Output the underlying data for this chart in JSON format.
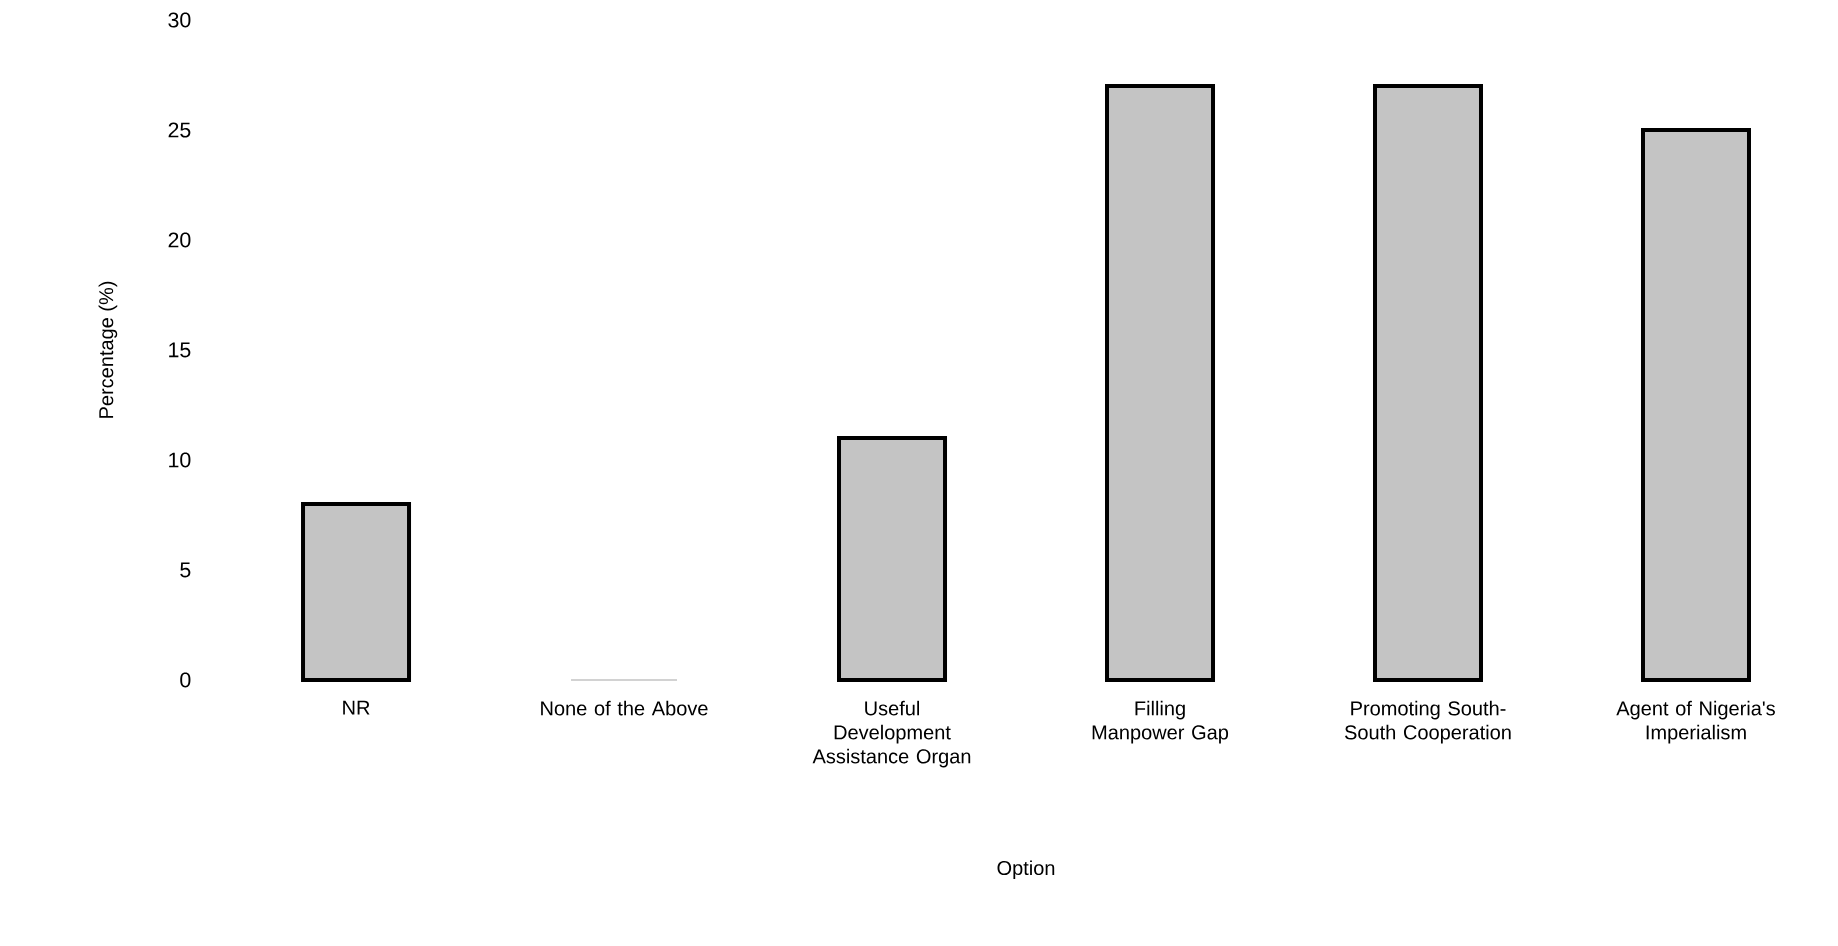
{
  "chart_data": {
    "type": "bar",
    "xlabel": "Option",
    "ylabel": "Percentage (%)",
    "categories": [
      "NR",
      "None of the Above",
      "Useful Development Assistance Organ",
      "Filling Manpower Gap",
      "Promoting South-South Cooperation",
      "Agent of Nigeria's Imperialism"
    ],
    "values": [
      8,
      0,
      11,
      27,
      27,
      25
    ],
    "color": "#c4c4c4",
    "ylim": [
      0,
      30
    ],
    "yticks": [
      0,
      5,
      10,
      15,
      20,
      25,
      30
    ],
    "grid": false
  }
}
